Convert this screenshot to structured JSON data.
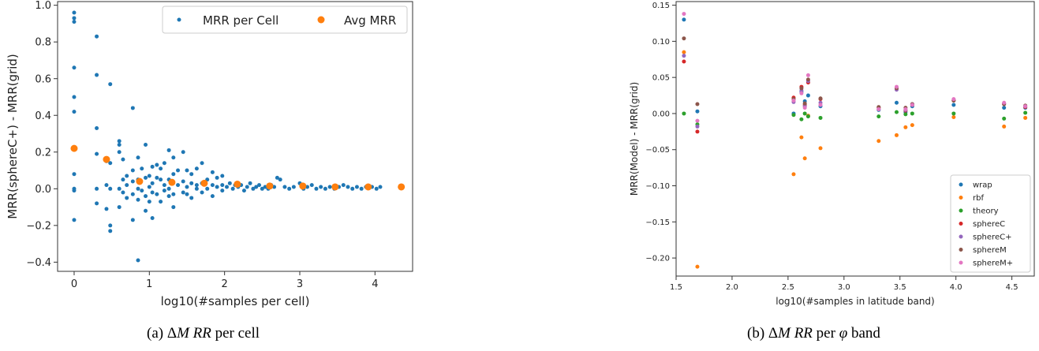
{
  "captions": {
    "a": {
      "prefix": "(a) ",
      "symbol": "Δ",
      "var": "M RR",
      "suffix": " per cell"
    },
    "b": {
      "prefix": "(b) ",
      "symbol": "Δ",
      "var": "M RR",
      "mid": " per ",
      "phi": "φ",
      "suffix": " band"
    }
  },
  "chart_data": [
    {
      "type": "scatter",
      "title": "",
      "xlabel": "log10(#samples per cell)",
      "ylabel": "MRR(sphereC+) - MRR(grid)",
      "xlim": [
        -0.22,
        4.5
      ],
      "ylim": [
        -0.45,
        1.02
      ],
      "xticks": [
        "0",
        "1",
        "2",
        "3",
        "4"
      ],
      "xtick_values": [
        0,
        1,
        2,
        3,
        4
      ],
      "yticks": [
        "−0.4",
        "−0.2",
        "0.0",
        "0.2",
        "0.4",
        "0.6",
        "0.8",
        "1.0"
      ],
      "ytick_values": [
        -0.4,
        -0.2,
        0.0,
        0.2,
        0.4,
        0.6,
        0.8,
        1.0
      ],
      "grid": false,
      "legend": {
        "placement": "top-right",
        "columns": 2
      },
      "series": [
        {
          "name": "MRR per Cell",
          "color": "#1f77b4",
          "marker_size": 2.5,
          "points": [
            [
              0,
              0.96
            ],
            [
              0,
              0.93
            ],
            [
              0,
              0.91
            ],
            [
              0,
              0.66
            ],
            [
              0,
              0.5
            ],
            [
              0,
              0.42
            ],
            [
              0,
              0.22
            ],
            [
              0,
              0.08
            ],
            [
              0,
              0.0
            ],
            [
              0,
              -0.01
            ],
            [
              0,
              -0.17
            ],
            [
              0.3,
              0.83
            ],
            [
              0.3,
              0.62
            ],
            [
              0.3,
              0.33
            ],
            [
              0.3,
              0.19
            ],
            [
              0.3,
              0.0
            ],
            [
              0.3,
              -0.08
            ],
            [
              0.43,
              0.15
            ],
            [
              0.43,
              0.02
            ],
            [
              0.43,
              -0.11
            ],
            [
              0.48,
              0.57
            ],
            [
              0.48,
              0.14
            ],
            [
              0.48,
              0.0
            ],
            [
              0.48,
              -0.2
            ],
            [
              0.48,
              -0.23
            ],
            [
              0.6,
              0.26
            ],
            [
              0.6,
              0.24
            ],
            [
              0.6,
              0.2
            ],
            [
              0.6,
              0.0
            ],
            [
              0.6,
              -0.1
            ],
            [
              0.65,
              0.16
            ],
            [
              0.65,
              0.05
            ],
            [
              0.65,
              -0.02
            ],
            [
              0.7,
              0.07
            ],
            [
              0.7,
              0.02
            ],
            [
              0.7,
              -0.05
            ],
            [
              0.78,
              0.44
            ],
            [
              0.78,
              0.1
            ],
            [
              0.78,
              0.04
            ],
            [
              0.78,
              -0.03
            ],
            [
              0.78,
              -0.17
            ],
            [
              0.85,
              0.17
            ],
            [
              0.85,
              0.05
            ],
            [
              0.85,
              0.0
            ],
            [
              0.85,
              -0.06
            ],
            [
              0.85,
              -0.39
            ],
            [
              0.9,
              0.11
            ],
            [
              0.9,
              -0.01
            ],
            [
              0.95,
              0.24
            ],
            [
              0.95,
              0.06
            ],
            [
              0.95,
              -0.04
            ],
            [
              0.95,
              -0.12
            ],
            [
              1.0,
              0.07
            ],
            [
              1.0,
              0.01
            ],
            [
              1.0,
              -0.07
            ],
            [
              1.04,
              0.12
            ],
            [
              1.04,
              0.03
            ],
            [
              1.04,
              -0.02
            ],
            [
              1.04,
              -0.16
            ],
            [
              1.1,
              0.13
            ],
            [
              1.1,
              0.06
            ],
            [
              1.1,
              -0.03
            ],
            [
              1.15,
              0.11
            ],
            [
              1.15,
              0.05
            ],
            [
              1.15,
              -0.07
            ],
            [
              1.2,
              0.14
            ],
            [
              1.2,
              0.02
            ],
            [
              1.2,
              -0.01
            ],
            [
              1.26,
              0.21
            ],
            [
              1.26,
              0.05
            ],
            [
              1.26,
              0.0
            ],
            [
              1.26,
              -0.04
            ],
            [
              1.32,
              0.17
            ],
            [
              1.32,
              0.08
            ],
            [
              1.32,
              -0.03
            ],
            [
              1.32,
              -0.1
            ],
            [
              1.38,
              0.1
            ],
            [
              1.38,
              0.02
            ],
            [
              1.45,
              0.2
            ],
            [
              1.45,
              0.04
            ],
            [
              1.45,
              -0.02
            ],
            [
              1.5,
              0.1
            ],
            [
              1.5,
              0.01
            ],
            [
              1.5,
              -0.03
            ],
            [
              1.56,
              0.08
            ],
            [
              1.56,
              0.03
            ],
            [
              1.56,
              -0.05
            ],
            [
              1.63,
              0.11
            ],
            [
              1.63,
              0.02
            ],
            [
              1.63,
              0.0
            ],
            [
              1.7,
              0.14
            ],
            [
              1.7,
              0.03
            ],
            [
              1.7,
              -0.02
            ],
            [
              1.77,
              0.05
            ],
            [
              1.77,
              0.0
            ],
            [
              1.84,
              0.09
            ],
            [
              1.84,
              0.02
            ],
            [
              1.84,
              -0.04
            ],
            [
              1.9,
              0.06
            ],
            [
              1.9,
              0.01
            ],
            [
              1.97,
              0.07
            ],
            [
              1.97,
              0.02
            ],
            [
              1.97,
              -0.01
            ],
            [
              2.03,
              0.01
            ],
            [
              2.07,
              0.03
            ],
            [
              2.11,
              0.0
            ],
            [
              2.14,
              0.02
            ],
            [
              2.18,
              0.01
            ],
            [
              2.22,
              0.02
            ],
            [
              2.26,
              -0.01
            ],
            [
              2.3,
              0.01
            ],
            [
              2.34,
              0.03
            ],
            [
              2.38,
              0.0
            ],
            [
              2.42,
              0.01
            ],
            [
              2.46,
              0.02
            ],
            [
              2.5,
              0.0
            ],
            [
              2.54,
              0.01
            ],
            [
              2.58,
              0.0
            ],
            [
              2.62,
              0.02
            ],
            [
              2.66,
              0.01
            ],
            [
              2.7,
              0.06
            ],
            [
              2.74,
              0.05
            ],
            [
              2.8,
              0.01
            ],
            [
              2.86,
              0.0
            ],
            [
              2.92,
              0.01
            ],
            [
              3.0,
              0.03
            ],
            [
              3.05,
              0.0
            ],
            [
              3.1,
              0.01
            ],
            [
              3.16,
              0.02
            ],
            [
              3.22,
              0.0
            ],
            [
              3.28,
              0.01
            ],
            [
              3.34,
              0.0
            ],
            [
              3.4,
              0.01
            ],
            [
              3.46,
              0.0
            ],
            [
              3.52,
              0.01
            ],
            [
              3.58,
              0.02
            ],
            [
              3.64,
              0.01
            ],
            [
              3.7,
              0.0
            ],
            [
              3.76,
              0.01
            ],
            [
              3.82,
              0.0
            ],
            [
              3.88,
              0.01
            ],
            [
              3.96,
              0.01
            ],
            [
              4.02,
              0.0
            ],
            [
              4.07,
              0.01
            ],
            [
              4.35,
              0.01
            ]
          ]
        },
        {
          "name": "Avg MRR",
          "color": "#ff7f0e",
          "marker_size": 4.5,
          "points": [
            [
              0,
              0.22
            ],
            [
              0.43,
              0.16
            ],
            [
              0.87,
              0.04
            ],
            [
              1.3,
              0.035
            ],
            [
              1.73,
              0.03
            ],
            [
              2.17,
              0.025
            ],
            [
              2.6,
              0.015
            ],
            [
              3.04,
              0.015
            ],
            [
              3.47,
              0.01
            ],
            [
              3.91,
              0.01
            ],
            [
              4.35,
              0.01
            ]
          ]
        }
      ]
    },
    {
      "type": "scatter",
      "title": "",
      "xlabel": "log10(#samples in latitude band)",
      "ylabel": "MRR(Model) - MRR(grid)",
      "xlim": [
        1.5,
        4.7
      ],
      "ylim": [
        -0.225,
        0.155
      ],
      "xticks": [
        "1.5",
        "2.0",
        "2.5",
        "3.0",
        "3.5",
        "4.0",
        "4.5"
      ],
      "xtick_values": [
        1.5,
        2.0,
        2.5,
        3.0,
        3.5,
        4.0,
        4.5
      ],
      "yticks": [
        "−0.20",
        "−0.15",
        "−0.10",
        "−0.05",
        "0.00",
        "0.05",
        "0.10",
        "0.15"
      ],
      "ytick_values": [
        -0.2,
        -0.15,
        -0.1,
        -0.05,
        0.0,
        0.05,
        0.1,
        0.15
      ],
      "grid": false,
      "legend": {
        "placement": "bottom-right",
        "columns": 1
      },
      "x_positions": [
        1.57,
        1.69,
        2.55,
        2.62,
        2.65,
        2.68,
        2.79,
        3.31,
        3.47,
        3.55,
        3.61,
        3.98,
        4.43,
        4.62
      ],
      "series": [
        {
          "name": "wrap",
          "color": "#1f77b4",
          "values": [
            0.13,
            0.003,
            0.0,
            0.03,
            0.017,
            0.025,
            0.01,
            0.005,
            0.015,
            0.002,
            0.01,
            0.012,
            0.008,
            0.008
          ]
        },
        {
          "name": "rbf",
          "color": "#ff7f0e",
          "values": [
            0.085,
            -0.212,
            -0.084,
            -0.033,
            -0.062,
            -0.003,
            -0.048,
            -0.038,
            -0.03,
            -0.019,
            -0.016,
            -0.005,
            -0.018,
            -0.006
          ]
        },
        {
          "name": "theory",
          "color": "#2ca02c",
          "values": [
            0.0,
            -0.015,
            -0.002,
            -0.008,
            0.0,
            -0.004,
            -0.006,
            -0.004,
            0.002,
            -0.001,
            0.0,
            0.0,
            -0.007,
            0.001
          ]
        },
        {
          "name": "sphereC",
          "color": "#d62728",
          "values": [
            0.072,
            -0.025,
            0.022,
            0.037,
            0.012,
            0.043,
            0.02,
            0.008,
            0.035,
            0.004,
            0.012,
            0.018,
            0.013,
            0.009
          ]
        },
        {
          "name": "sphereC+",
          "color": "#9467bd",
          "values": [
            0.08,
            -0.018,
            0.016,
            0.032,
            0.01,
            0.045,
            0.015,
            0.006,
            0.033,
            0.005,
            0.013,
            0.019,
            0.014,
            0.01
          ]
        },
        {
          "name": "sphereM",
          "color": "#8c564b",
          "values": [
            0.104,
            0.013,
            0.02,
            0.035,
            0.014,
            0.047,
            0.021,
            0.009,
            0.035,
            0.008,
            0.013,
            0.018,
            0.013,
            0.011
          ]
        },
        {
          "name": "sphereM+",
          "color": "#e377c2",
          "values": [
            0.138,
            -0.01,
            0.018,
            0.028,
            0.008,
            0.053,
            0.012,
            0.006,
            0.037,
            0.006,
            0.012,
            0.02,
            0.015,
            0.01
          ]
        }
      ]
    }
  ]
}
